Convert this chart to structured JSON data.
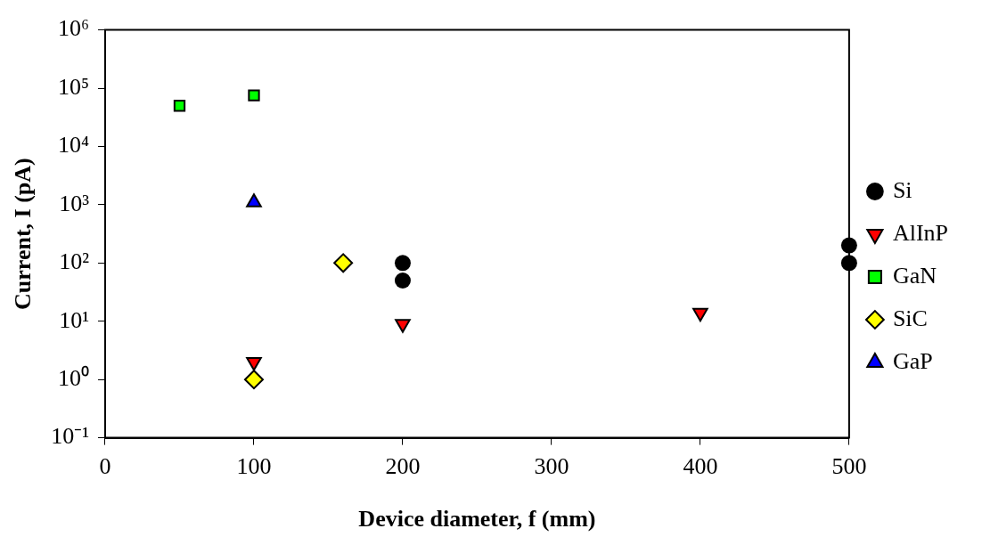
{
  "chart_data": {
    "type": "scatter",
    "xlabel": "Device diameter, f (mm)",
    "ylabel": "Current, I (pA)",
    "log": "y",
    "grid": false,
    "legend": "right",
    "xlim": [
      0,
      500
    ],
    "xticks": [
      0,
      100,
      200,
      300,
      400,
      500
    ],
    "ylim": [
      0.1,
      1000000
    ],
    "yticks": [
      {
        "value": 0.1,
        "label": "10⁻¹"
      },
      {
        "value": 1,
        "label": "10⁰"
      },
      {
        "value": 10,
        "label": "10¹"
      },
      {
        "value": 100,
        "label": "10²"
      },
      {
        "value": 1000,
        "label": "10³"
      },
      {
        "value": 10000,
        "label": "10⁴"
      },
      {
        "value": 100000,
        "label": "10⁵"
      },
      {
        "value": 1000000,
        "label": "10⁶"
      }
    ],
    "series": [
      {
        "name": "Si",
        "color": "#000000",
        "marker": "circle",
        "x": [
          200,
          200,
          500,
          500
        ],
        "values": [
          100,
          50,
          200,
          100
        ]
      },
      {
        "name": "AlInP",
        "color": "#ff0000",
        "marker": "triangle-down",
        "x": [
          100,
          200,
          400
        ],
        "values": [
          2,
          9,
          14
        ]
      },
      {
        "name": "GaN",
        "color": "#00ff00",
        "marker": "square",
        "x": [
          50,
          100
        ],
        "values": [
          50000,
          75000
        ]
      },
      {
        "name": "SiC",
        "color": "#ffff00",
        "marker": "diamond",
        "x": [
          100,
          160
        ],
        "values": [
          1,
          100
        ]
      },
      {
        "name": "GaP",
        "color": "#0000ff",
        "marker": "triangle",
        "x": [
          100
        ],
        "values": [
          1100
        ]
      }
    ]
  }
}
